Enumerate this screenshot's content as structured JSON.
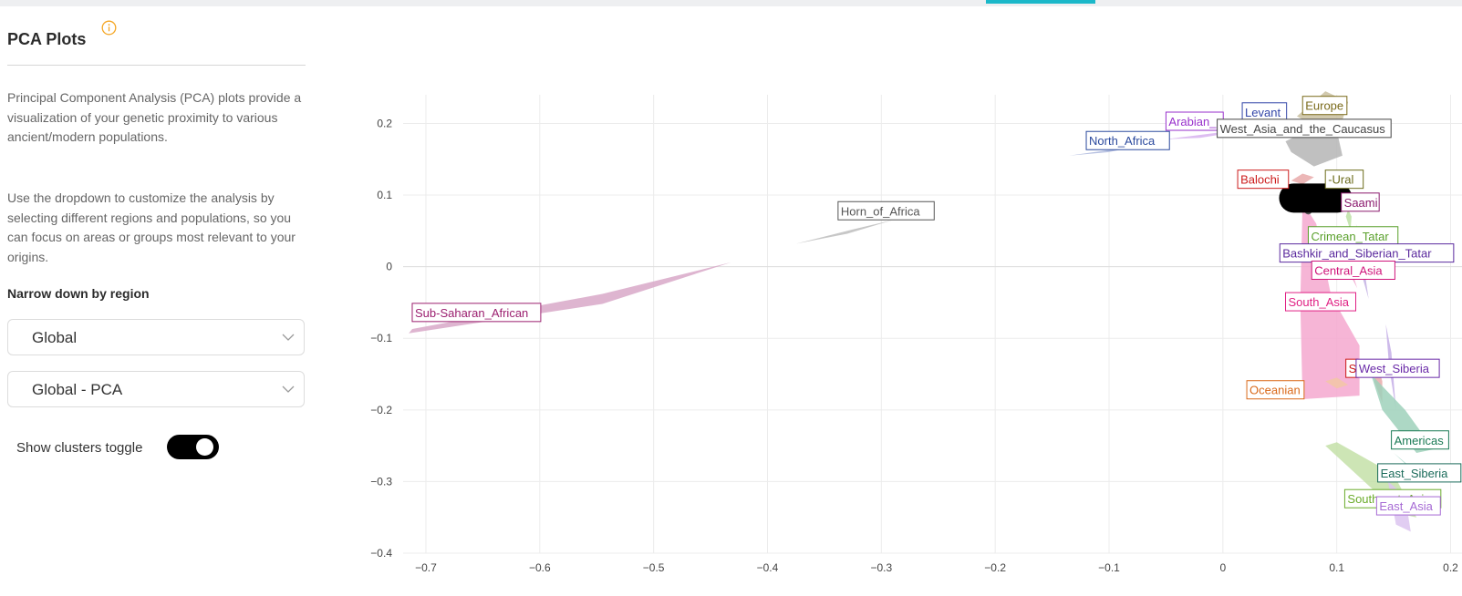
{
  "sidebar": {
    "title": "PCA Plots",
    "paragraph1": "Principal Component Analysis (PCA) plots provide a visualization of your genetic proximity to various ancient/modern populations.",
    "paragraph2": "Use the dropdown to customize the analysis by selecting different regions and populations, so you can focus on areas or groups most relevant to your origins.",
    "narrow_label": "Narrow down by region",
    "region_select": "Global",
    "analysis_select": "Global - PCA",
    "toggle_label": "Show clusters toggle",
    "toggle_on": true,
    "info_icon": "info-circle-icon",
    "accent": "#f5a623"
  },
  "chart_data": {
    "type": "scatter",
    "xlim": [
      -0.72,
      0.21
    ],
    "ylim": [
      -0.4,
      0.24
    ],
    "xticks": [
      -0.7,
      -0.6,
      -0.5,
      -0.4,
      -0.3,
      -0.2,
      -0.1,
      0,
      0.1,
      0.2
    ],
    "xtick_labels": [
      "−0.7",
      "−0.6",
      "−0.5",
      "−0.4",
      "−0.3",
      "−0.2",
      "−0.1",
      "0",
      "0.1",
      "0.2"
    ],
    "yticks": [
      0.2,
      0.1,
      0,
      -0.1,
      -0.2,
      -0.3,
      -0.4
    ],
    "ytick_labels": [
      "0.2",
      "0.1",
      "0",
      "−0.1",
      "−0.2",
      "−0.3",
      "−0.4"
    ],
    "grid": true,
    "clusters": [
      {
        "name": "Sub-Saharan_African",
        "color": "#9b1f6f",
        "fill": "#d8a8c8",
        "label_at": [
          -0.712,
          -0.069
        ],
        "hull": [
          [
            -0.715,
            -0.093
          ],
          [
            -0.545,
            -0.052
          ],
          [
            -0.432,
            0.006
          ],
          [
            -0.545,
            -0.038
          ],
          [
            -0.712,
            -0.087
          ]
        ]
      },
      {
        "name": "Horn_of_Africa",
        "color": "#555555",
        "fill": "#bdbdbd",
        "label_at": [
          -0.338,
          0.073
        ],
        "hull": [
          [
            -0.375,
            0.032
          ],
          [
            -0.325,
            0.052
          ],
          [
            -0.29,
            0.065
          ],
          [
            -0.33,
            0.046
          ]
        ]
      },
      {
        "name": "North_Africa",
        "color": "#2b4a9e",
        "fill": "#aab6dc",
        "label_at": [
          -0.12,
          0.171
        ],
        "hull": [
          [
            -0.135,
            0.155
          ],
          [
            -0.09,
            0.165
          ],
          [
            -0.04,
            0.18
          ],
          [
            -0.1,
            0.16
          ]
        ]
      },
      {
        "name": "Arabian_Peninsula",
        "color": "#9932cc",
        "fill": "#d7b3ee",
        "label_at": [
          -0.05,
          0.198
        ],
        "hull": [
          [
            -0.05,
            0.178
          ],
          [
            0.0,
            0.188
          ],
          [
            0.02,
            0.19
          ],
          [
            -0.02,
            0.18
          ]
        ]
      },
      {
        "name": "Levant",
        "color": "#3346a8",
        "fill": "#b8c0e6",
        "label_at": [
          0.017,
          0.211
        ],
        "hull": [
          [
            0.02,
            0.195
          ],
          [
            0.06,
            0.2
          ],
          [
            0.08,
            0.206
          ],
          [
            0.04,
            0.197
          ]
        ]
      },
      {
        "name": "Europe",
        "color": "#7a6a1a",
        "fill": "#c9c0a0",
        "label_at": [
          0.07,
          0.22
        ],
        "hull": [
          [
            0.065,
            0.21
          ],
          [
            0.09,
            0.245
          ],
          [
            0.11,
            0.23
          ],
          [
            0.1,
            0.18
          ]
        ]
      },
      {
        "name": "West_Asia_and_the_Caucasus",
        "color": "#444444",
        "fill": "#b5b5b5",
        "label_at": [
          -0.005,
          0.188
        ],
        "hull": [
          [
            0.055,
            0.175
          ],
          [
            0.08,
            0.195
          ],
          [
            0.1,
            0.19
          ],
          [
            0.105,
            0.155
          ],
          [
            0.08,
            0.14
          ],
          [
            0.06,
            0.16
          ]
        ]
      },
      {
        "name": "Balochi",
        "color": "#cc1a1a",
        "fill": "#e9aaaa",
        "label_at": [
          0.013,
          0.117
        ],
        "hull": [
          [
            0.06,
            0.12
          ],
          [
            0.07,
            0.13
          ],
          [
            0.08,
            0.125
          ],
          [
            0.07,
            0.115
          ]
        ]
      },
      {
        "name": "Volga-Ural",
        "color": "#6b6b1a",
        "fill": "#cfcfa0",
        "label_at": [
          0.09,
          0.117
        ],
        "hull": [
          [
            0.09,
            0.12
          ],
          [
            0.1,
            0.13
          ],
          [
            0.11,
            0.125
          ],
          [
            0.1,
            0.112
          ]
        ]
      },
      {
        "name": "Saami",
        "color": "#8b1a6e",
        "fill": "#d9a6cc",
        "label_at": [
          0.104,
          0.085
        ],
        "hull": [
          [
            0.105,
            0.09
          ],
          [
            0.112,
            0.1
          ],
          [
            0.115,
            0.085
          ],
          [
            0.108,
            0.08
          ]
        ]
      },
      {
        "name": "Crimean_Tatar",
        "color": "#5aa02c",
        "fill": "#bde0a6",
        "label_at": [
          0.075,
          0.038
        ],
        "hull": [
          [
            0.11,
            0.08
          ],
          [
            0.113,
            0.07
          ],
          [
            0.112,
            0.05
          ],
          [
            0.108,
            0.07
          ]
        ]
      },
      {
        "name": "Bashkir_and_Siberian_Tatar",
        "color": "#5b2a9e",
        "fill": "#c3b0e3",
        "label_at": [
          0.05,
          0.014
        ],
        "hull": [
          [
            0.117,
            0.06
          ],
          [
            0.123,
            0.01
          ],
          [
            0.128,
            -0.045
          ],
          [
            0.12,
            0.0
          ]
        ]
      },
      {
        "name": "Central_Asia",
        "color": "#d0157a",
        "fill": "#f2a6cf",
        "label_at": [
          0.078,
          -0.01
        ],
        "hull": [
          [
            0.1,
            0.03
          ],
          [
            0.112,
            0.0
          ],
          [
            0.118,
            -0.03
          ],
          [
            0.108,
            0.0
          ]
        ]
      },
      {
        "name": "South_Asia",
        "color": "#e02084",
        "fill": "#f4a8cf",
        "label_at": [
          0.055,
          -0.054
        ],
        "hull": [
          [
            0.07,
            0.09
          ],
          [
            0.082,
            0.06
          ],
          [
            0.095,
            -0.04
          ],
          [
            0.12,
            -0.11
          ],
          [
            0.12,
            -0.18
          ],
          [
            0.07,
            -0.185
          ],
          [
            0.068,
            -0.05
          ]
        ]
      },
      {
        "name": "Southeast_Asia_label_partial",
        "color": "#cc1a1a",
        "fill": "#e9aaaa",
        "label_at": [
          0.108,
          -0.147
        ],
        "hull": [
          [
            0.135,
            -0.13
          ],
          [
            0.14,
            -0.16
          ],
          [
            0.14,
            -0.19
          ],
          [
            0.133,
            -0.16
          ]
        ]
      },
      {
        "name": "West_Siberia",
        "color": "#6a2aa8",
        "fill": "#c4aee6",
        "label_at": [
          0.117,
          -0.147
        ],
        "hull": [
          [
            0.143,
            -0.08
          ],
          [
            0.148,
            -0.12
          ],
          [
            0.152,
            -0.2
          ],
          [
            0.146,
            -0.14
          ]
        ]
      },
      {
        "name": "Oceanian",
        "color": "#d9691a",
        "fill": "#f2c7a6",
        "label_at": [
          0.021,
          -0.177
        ],
        "hull": [
          [
            0.09,
            -0.16
          ],
          [
            0.1,
            -0.17
          ],
          [
            0.11,
            -0.165
          ],
          [
            0.1,
            -0.155
          ]
        ]
      },
      {
        "name": "Americas",
        "color": "#1a7a55",
        "fill": "#9fd1bb",
        "label_at": [
          0.148,
          -0.247
        ],
        "hull": [
          [
            0.13,
            -0.15
          ],
          [
            0.16,
            -0.2
          ],
          [
            0.185,
            -0.255
          ],
          [
            0.17,
            -0.26
          ],
          [
            0.14,
            -0.2
          ]
        ]
      },
      {
        "name": "East_Siberia",
        "color": "#1a6b5a",
        "fill": "#a6d6c7",
        "label_at": [
          0.136,
          -0.293
        ],
        "hull": [
          [
            0.15,
            -0.26
          ],
          [
            0.165,
            -0.28
          ],
          [
            0.18,
            -0.3
          ],
          [
            0.17,
            -0.29
          ]
        ]
      },
      {
        "name": "Southeast_Asia",
        "color": "#6aab2a",
        "fill": "#c4e0a8",
        "label_at": [
          0.107,
          -0.329
        ],
        "hull": [
          [
            0.09,
            -0.25
          ],
          [
            0.1,
            -0.245
          ],
          [
            0.15,
            -0.29
          ],
          [
            0.17,
            -0.35
          ],
          [
            0.155,
            -0.345
          ]
        ]
      },
      {
        "name": "East_Asia",
        "color": "#a66ad4",
        "fill": "#dcc4f0",
        "label_at": [
          0.135,
          -0.339
        ],
        "hull": [
          [
            0.145,
            -0.3
          ],
          [
            0.16,
            -0.32
          ],
          [
            0.165,
            -0.37
          ],
          [
            0.152,
            -0.36
          ]
        ]
      }
    ],
    "visible_labels": [
      "Sub-Saharan_African",
      "Horn_of_Africa",
      "North_Africa",
      "Arabian_",
      "Levant",
      "Europe",
      "West_Asia_and_the_Caucasus",
      "Balochi",
      "-Ural",
      "Saami",
      "Crimean_Tatar",
      "Bashkir_and_Siberian_Tatar",
      "Central_Asia",
      "South_Asia",
      "S",
      "West_Siberia",
      "Oceanian",
      "Americas",
      "East_Siberia",
      "Southeast_Asia",
      "East_Asia"
    ],
    "user_point": {
      "x": 0.075,
      "y": 0.078,
      "redacted": true
    }
  }
}
